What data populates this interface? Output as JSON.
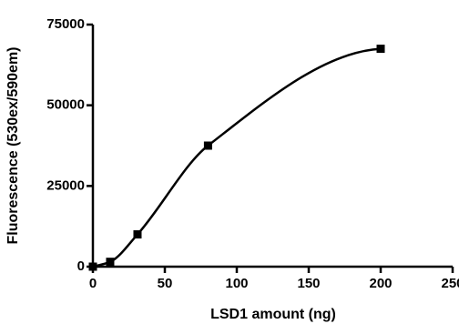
{
  "chart_data": {
    "type": "scatter",
    "x_label": "LSD1 amount (ng)",
    "y_label": "Fluorescence (530ex/590em)",
    "series": [
      {
        "color": "#000000",
        "x": [
          0,
          12,
          31,
          80,
          200
        ],
        "values": [
          0,
          1500,
          10000,
          37500,
          67500
        ]
      }
    ],
    "xlim": [
      0,
      250
    ],
    "xticks": [
      0,
      50,
      100,
      150,
      200,
      250
    ],
    "ylim": [
      0,
      75000
    ],
    "yticks": [
      0,
      25000,
      50000,
      75000
    ],
    "grid": false
  }
}
